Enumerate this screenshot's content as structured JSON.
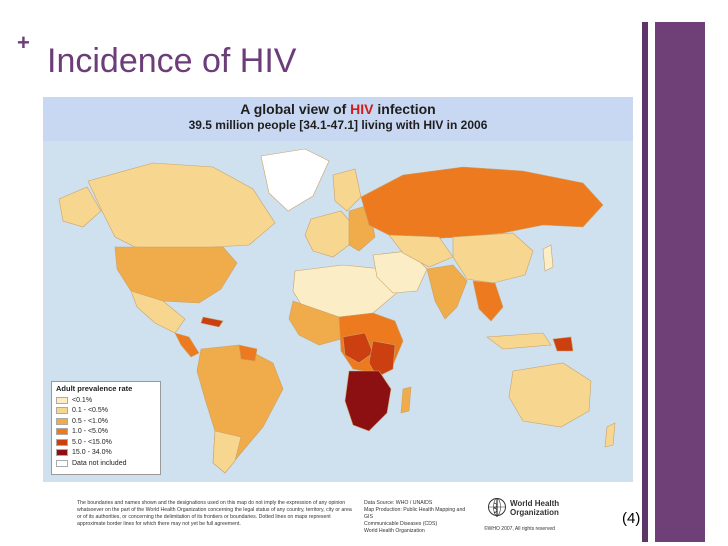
{
  "slide": {
    "plus": "+",
    "title": "Incidence of HIV",
    "reference": "(4)"
  },
  "map": {
    "title_part1": "A global view of ",
    "title_highlight": "HIV",
    "title_part2": " infection",
    "subtitle": "39.5 million people [34.1-47.1] living with HIV in 2006"
  },
  "legend": {
    "title": "Adult prevalence rate",
    "items": [
      {
        "label": "<0.1%",
        "color": "#fbedc6"
      },
      {
        "label": "0.1 - <0.5%",
        "color": "#f7d68f"
      },
      {
        "label": "0.5 - <1.0%",
        "color": "#f0ab4a"
      },
      {
        "label": "1.0 - <5.0%",
        "color": "#ee7a20"
      },
      {
        "label": "5.0 - <15.0%",
        "color": "#cc3f10"
      },
      {
        "label": "15.0 - 34.0%",
        "color": "#8c0f12"
      },
      {
        "label": "Data not included",
        "color": "#ffffff"
      }
    ]
  },
  "footer": {
    "disclaimer": "The boundaries and names shown and the designations used on this map do not imply the expression of any opinion whatsoever on the part of the World Health Organization concerning the legal status of any country, territory, city or area or of its authorities, or concerning the delimitation of its frontiers or boundaries. Dotted lines on maps represent approximate border lines for which there may not yet be full agreement.",
    "source_line1": "Data Source: WHO / UNAIDS",
    "source_line2": "Map Production: Public Health Mapping and GIS",
    "source_line3": "Communicable Diseases (CDS)",
    "source_line4": "World Health Organization",
    "who_name_line1": "World Health",
    "who_name_line2": "Organization",
    "copyright": "©WHO 2007, All rights reserved"
  },
  "colors": {
    "ocean": "#cfe0ef",
    "accent": "#6f3f78"
  }
}
